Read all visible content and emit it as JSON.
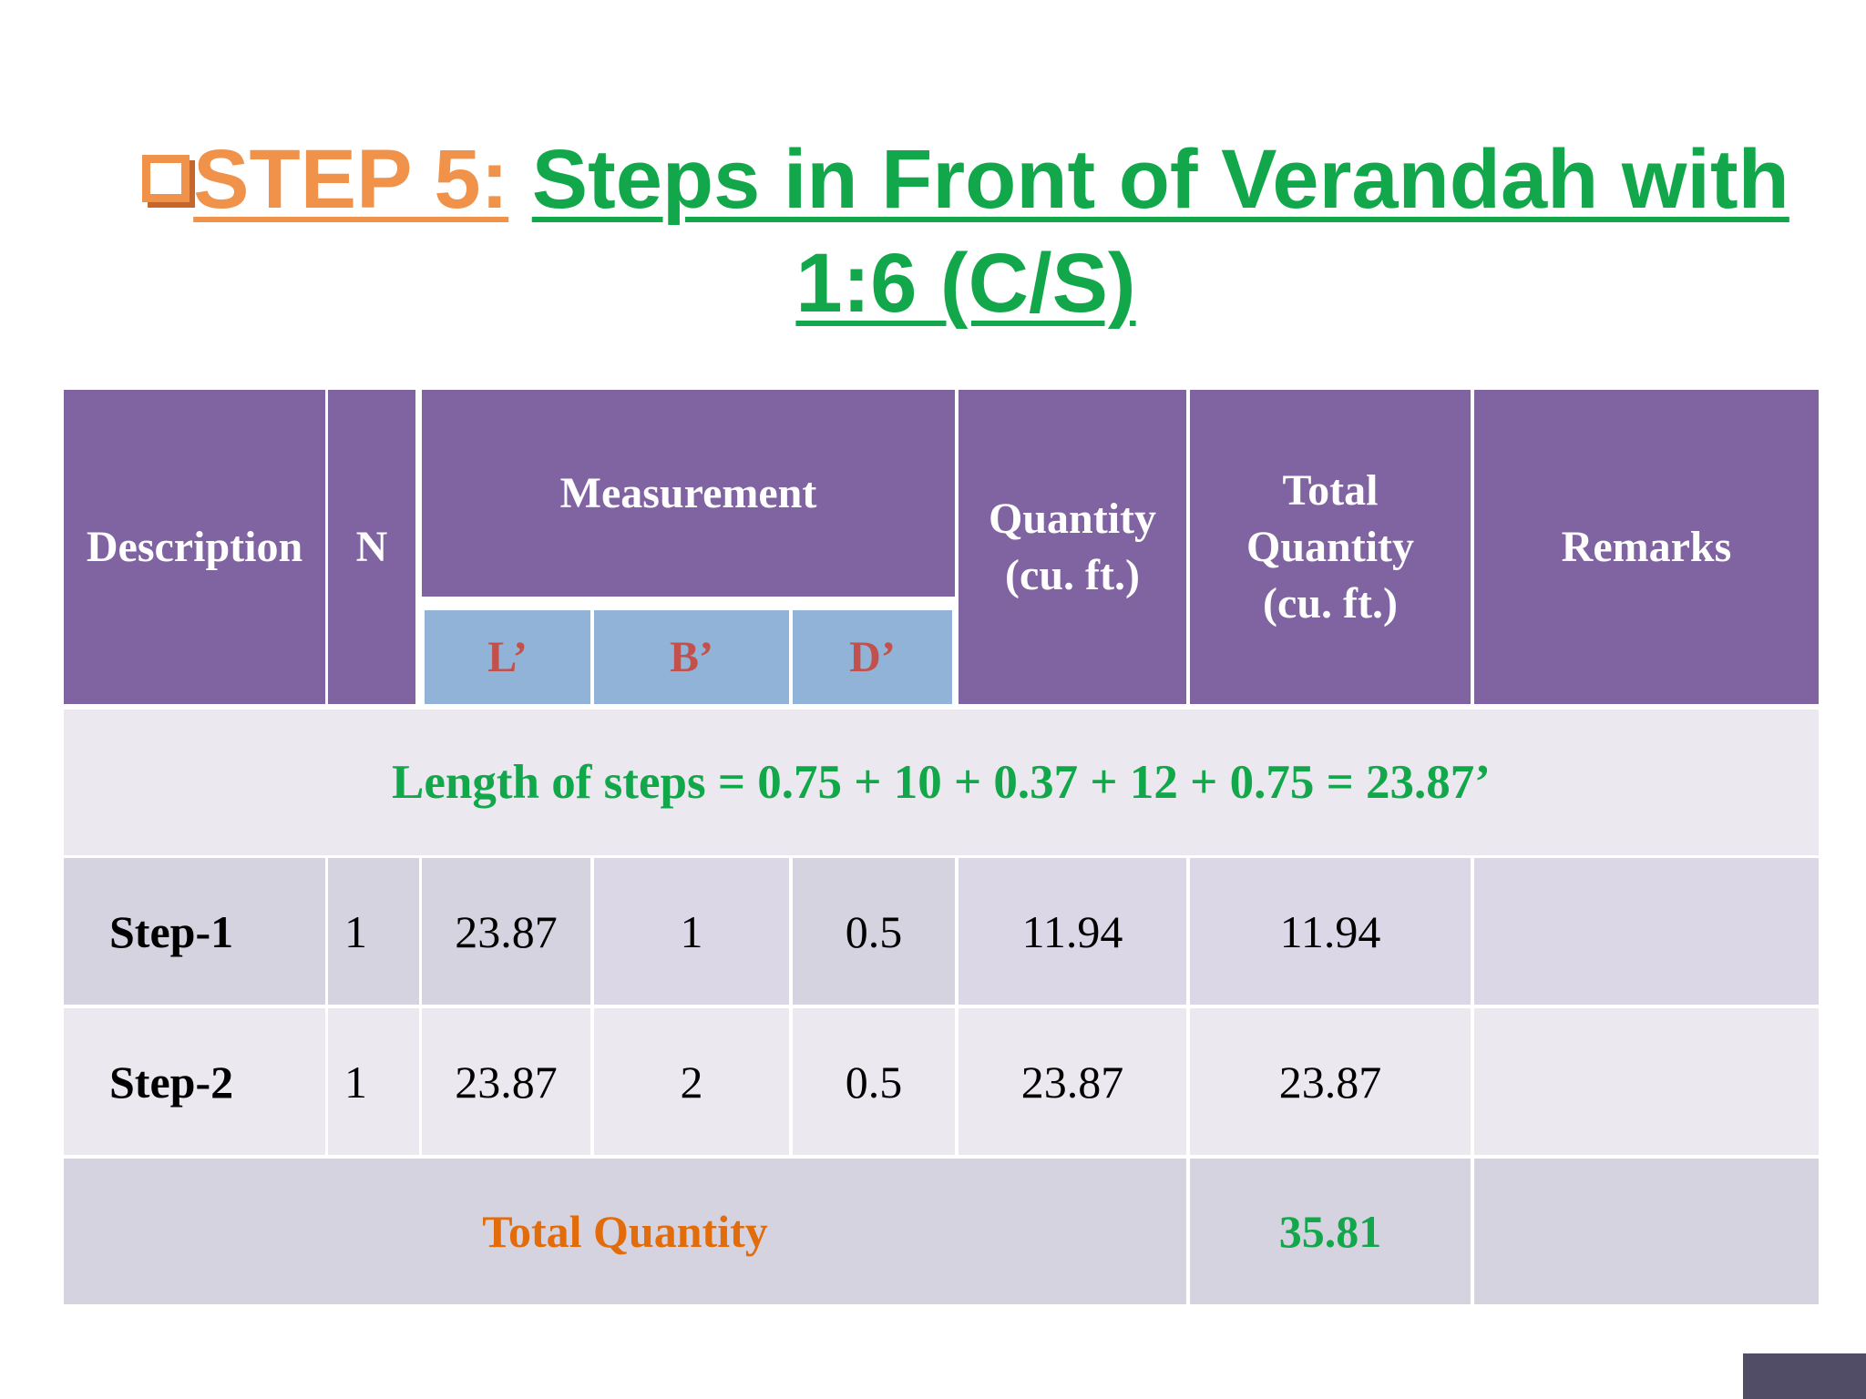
{
  "title": {
    "step_label": "STEP 5:",
    "main": "Steps in Front of Verandah with 1:6 (C/S)"
  },
  "table": {
    "headers": {
      "description": "Description",
      "n": "N",
      "measurement": "Measurement",
      "l": "L’",
      "b": "B’",
      "d": "D’",
      "quantity_line1": "Quantity",
      "quantity_line2": "(cu. ft.)",
      "total_line1": "Total",
      "total_line2": "Quantity",
      "total_line3": "(cu. ft.)",
      "remarks": "Remarks"
    },
    "formula": "Length of steps = 0.75 + 10 + 0.37 + 12 + 0.75 = 23.87’",
    "rows": [
      {
        "description": "Step-1",
        "n": "1",
        "l": "23.87",
        "b": "1",
        "d": "0.5",
        "quantity": "11.94",
        "total": "11.94",
        "remarks": ""
      },
      {
        "description": "Step-2",
        "n": "1",
        "l": "23.87",
        "b": "2",
        "d": "0.5",
        "quantity": "23.87",
        "total": "23.87",
        "remarks": ""
      }
    ],
    "total_row": {
      "label": "Total Quantity",
      "value": "35.81"
    }
  },
  "colors": {
    "orange": "#f0924a",
    "green": "#12a74a",
    "header_purple": "#8063a1",
    "subheader_blue": "#91b3d8",
    "subheader_text": "#c2504b",
    "total_label": "#e26b0a"
  }
}
